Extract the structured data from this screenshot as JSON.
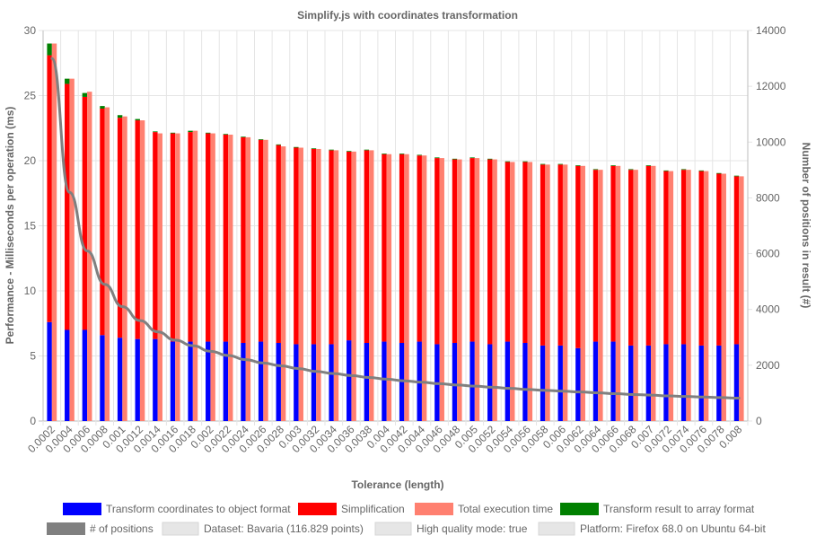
{
  "chart_data": {
    "type": "bar",
    "title": "Simplify.js with coordinates transformation",
    "xlabel": "Tolerance (length)",
    "ylabel": "Performance - Milliseconds per operation (ms)",
    "y2label": "Number of positions in result (#)",
    "ylim": [
      0,
      30
    ],
    "y2lim": [
      0,
      14000
    ],
    "yticks": [
      "0",
      "5",
      "10",
      "15",
      "20",
      "25",
      "30"
    ],
    "y2ticks": [
      "0",
      "2000",
      "4000",
      "6000",
      "8000",
      "10000",
      "12000",
      "14000"
    ],
    "grid": true,
    "legend_position": "bottom",
    "categories": [
      "0.0002",
      "0.0004",
      "0.0006",
      "0.0008",
      "0.001",
      "0.0012",
      "0.0014",
      "0.0016",
      "0.0018",
      "0.002",
      "0.0022",
      "0.0024",
      "0.0026",
      "0.0028",
      "0.003",
      "0.0032",
      "0.0034",
      "0.0036",
      "0.0038",
      "0.004",
      "0.0042",
      "0.0044",
      "0.0046",
      "0.0048",
      "0.005",
      "0.0052",
      "0.0054",
      "0.0056",
      "0.0058",
      "0.006",
      "0.0062",
      "0.0064",
      "0.0066",
      "0.0068",
      "0.007",
      "0.0072",
      "0.0074",
      "0.0076",
      "0.0078",
      "0.008"
    ],
    "series": [
      {
        "name": "Transform coordinates to object format",
        "color": "#0000ff",
        "stack": "a",
        "type": "bar",
        "values": [
          7.6,
          7.0,
          7.0,
          6.6,
          6.4,
          6.3,
          6.3,
          6.1,
          6.1,
          6.1,
          6.1,
          6.0,
          6.1,
          6.0,
          5.9,
          5.9,
          5.9,
          6.2,
          6.0,
          6.1,
          6.0,
          6.1,
          5.9,
          6.0,
          6.1,
          5.9,
          6.1,
          6.0,
          5.8,
          5.8,
          5.6,
          6.1,
          6.1,
          5.8,
          5.8,
          5.9,
          5.9,
          5.8,
          5.8,
          5.9
        ]
      },
      {
        "name": "Simplification",
        "color": "#ff0000",
        "stack": "a",
        "type": "bar",
        "values": [
          20.5,
          18.9,
          17.9,
          17.4,
          16.9,
          16.8,
          15.9,
          16.0,
          16.1,
          16.0,
          15.9,
          15.8,
          15.5,
          15.2,
          15.1,
          15.0,
          14.9,
          14.5,
          14.8,
          14.4,
          14.5,
          14.3,
          14.3,
          14.1,
          14.1,
          14.2,
          13.8,
          13.9,
          13.9,
          13.9,
          14.0,
          13.2,
          13.5,
          13.5,
          13.8,
          13.3,
          13.4,
          13.4,
          13.2,
          12.9
        ]
      },
      {
        "name": "Total execution time",
        "color": "#ff8070",
        "stack": "b",
        "type": "bar",
        "values": [
          29.0,
          26.3,
          25.3,
          24.1,
          23.4,
          23.1,
          22.1,
          22.1,
          22.3,
          22.1,
          22.0,
          21.8,
          21.6,
          21.1,
          21.0,
          20.9,
          20.8,
          20.7,
          20.8,
          20.5,
          20.5,
          20.4,
          20.2,
          20.1,
          20.2,
          20.1,
          19.9,
          19.9,
          19.7,
          19.7,
          19.6,
          19.3,
          19.6,
          19.3,
          19.6,
          19.2,
          19.3,
          19.2,
          19.0,
          18.8
        ]
      },
      {
        "name": "Transform result to array format",
        "color": "#008000",
        "stack": "a",
        "type": "bar",
        "values": [
          0.9,
          0.4,
          0.3,
          0.2,
          0.2,
          0.1,
          0.05,
          0.05,
          0.1,
          0.05,
          0.05,
          0.05,
          0.05,
          0.05,
          0.05,
          0.05,
          0.05,
          0.05,
          0.05,
          0.05,
          0.05,
          0.05,
          0.05,
          0.05,
          0.05,
          0.05,
          0.05,
          0.05,
          0.05,
          0.05,
          0.05,
          0.05,
          0.05,
          0.05,
          0.05,
          0.05,
          0.05,
          0.05,
          0.05,
          0.05
        ]
      },
      {
        "name": "# of positions",
        "color": "#808080",
        "type": "line",
        "axis": "y2",
        "values": [
          13000,
          8200,
          6100,
          4900,
          4100,
          3600,
          3200,
          2900,
          2700,
          2500,
          2350,
          2200,
          2080,
          1980,
          1880,
          1780,
          1700,
          1630,
          1560,
          1500,
          1440,
          1390,
          1340,
          1290,
          1250,
          1210,
          1170,
          1130,
          1100,
          1070,
          1040,
          1010,
          980,
          950,
          930,
          900,
          880,
          860,
          840,
          820
        ]
      }
    ],
    "extra_legend": [
      "Dataset: Bavaria (116.829 points)",
      "High quality mode: true",
      "Platform: Firefox 68.0 on Ubuntu 64-bit"
    ],
    "extra_legend_color": "#e6e6e6"
  }
}
